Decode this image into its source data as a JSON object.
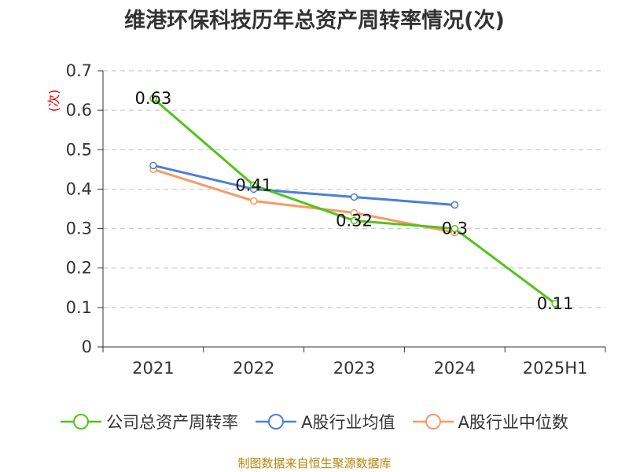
{
  "title": "维港环保科技历年总资产周转率情况(次)",
  "source": "制图数据来自恒生聚源数据库",
  "chart_data": {
    "type": "line",
    "title": "维港环保科技历年总资产周转率情况(次)",
    "xlabel": "",
    "ylabel": "(次)",
    "ylim": [
      0,
      0.7
    ],
    "yticks": [
      "0",
      "0.1",
      "0.2",
      "0.3",
      "0.4",
      "0.5",
      "0.6",
      "0.7"
    ],
    "categories": [
      "2021",
      "2022",
      "2023",
      "2024",
      "2025H1"
    ],
    "legend_position": "bottom",
    "grid": true,
    "series": [
      {
        "name": "公司总资产周转率",
        "color": "#52c41a",
        "values": [
          0.63,
          0.41,
          0.32,
          0.3,
          0.11
        ],
        "labels": [
          "0.63",
          "0.41",
          "0.32",
          "0.3",
          "0.11"
        ]
      },
      {
        "name": "A股行业均值",
        "color": "#4a7fd6",
        "values": [
          0.46,
          0.4,
          0.38,
          0.36,
          null
        ],
        "labels": []
      },
      {
        "name": "A股行业中位数",
        "color": "#f79a63",
        "values": [
          0.45,
          0.37,
          0.34,
          0.29,
          null
        ],
        "labels": []
      }
    ]
  }
}
